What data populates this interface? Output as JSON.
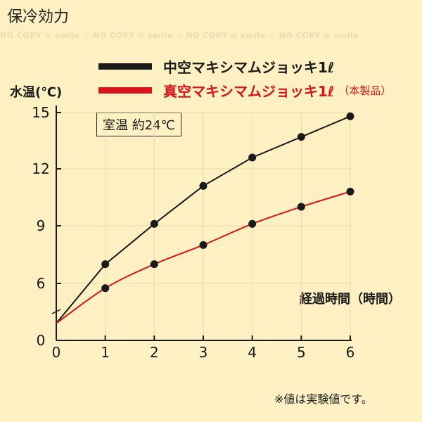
{
  "page": {
    "title": "保冷効力",
    "watermark": "NO COPY ⊘ smile ☆ NO COPY ⊘ smile ☆ NO COPY ⊘ smile ☆ NO COPY ⊘ smile"
  },
  "legend": {
    "series1": "中空マキシマムジョッキ1ℓ",
    "series2": "真空マキシマムジョッキ1ℓ",
    "series2_note": "（本製品）"
  },
  "annotations": {
    "room_temp": "室温 約24℃",
    "footnote": "※値は実験値です。"
  },
  "colors": {
    "background": "#fdf1c4",
    "series1": "#1a1a1a",
    "series2": "#d9141b"
  },
  "chart_data": {
    "type": "line",
    "xlabel": "経過時間（時間）",
    "ylabel": "水温(℃)",
    "x": [
      0,
      1,
      2,
      3,
      4,
      5,
      6
    ],
    "x_tick_labels": [
      "0",
      "1",
      "2",
      "3",
      "4",
      "5",
      "6"
    ],
    "y_tick_labels": [
      "0",
      "6",
      "9",
      "12",
      "15"
    ],
    "xlim": [
      0,
      6
    ],
    "grid": true,
    "legend_position": "top",
    "series": [
      {
        "name": "中空マキシマムジョッキ1ℓ",
        "color": "#1a1a1a",
        "values": [
          1.8,
          7.0,
          9.1,
          11.1,
          12.6,
          13.7,
          14.8
        ]
      },
      {
        "name": "真空マキシマムジョッキ1ℓ",
        "color": "#d9141b",
        "values": [
          1.8,
          5.5,
          7.0,
          8.0,
          9.1,
          10.0,
          10.8
        ]
      }
    ]
  }
}
